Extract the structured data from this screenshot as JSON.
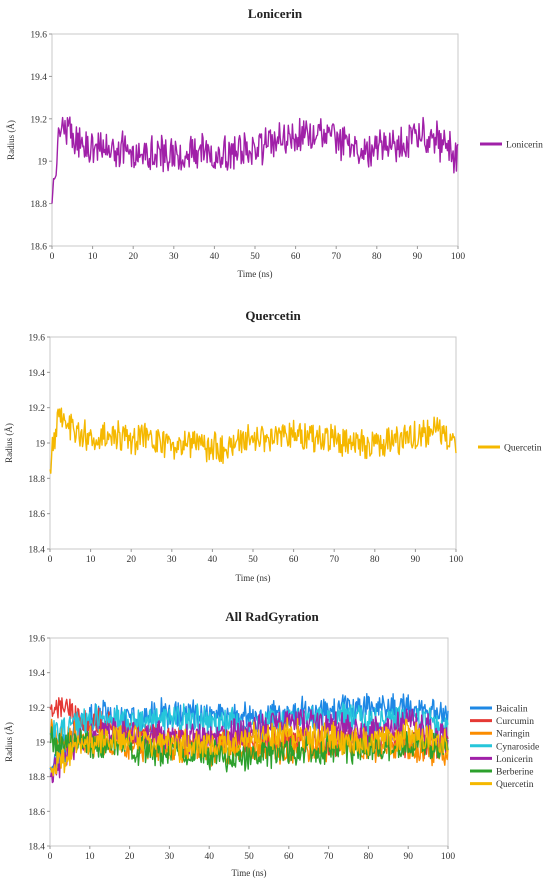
{
  "chart_data": [
    {
      "type": "line",
      "title": "Lonicerin",
      "xlabel": "Time (ns)",
      "ylabel": "Radius (Å)",
      "xlim": [
        0,
        100
      ],
      "ylim": [
        18.6,
        19.6
      ],
      "xticks": [
        "0",
        "10",
        "20",
        "30",
        "40",
        "50",
        "60",
        "70",
        "80",
        "90",
        "100"
      ],
      "yticks": [
        "18.6",
        "18.8",
        "19",
        "19.2",
        "19.4",
        "19.6"
      ],
      "legend": "right",
      "series": [
        {
          "name": "Lonicerin",
          "color": "#a020a8",
          "x": [
            0,
            2,
            5,
            8,
            10,
            15,
            20,
            25,
            30,
            35,
            40,
            45,
            50,
            55,
            60,
            65,
            70,
            75,
            80,
            85,
            90,
            95,
            100
          ],
          "y": [
            18.8,
            19.18,
            19.12,
            19.08,
            19.05,
            19.06,
            19.04,
            19.05,
            19.02,
            19.04,
            19.03,
            19.04,
            19.06,
            19.1,
            19.12,
            19.13,
            19.1,
            19.06,
            19.05,
            19.08,
            19.12,
            19.1,
            19.02
          ]
        }
      ]
    },
    {
      "type": "line",
      "title": "Quercetin",
      "xlabel": "Time (ns)",
      "ylabel": "Radius (Å)",
      "xlim": [
        0,
        100
      ],
      "ylim": [
        18.4,
        19.6
      ],
      "xticks": [
        "0",
        "10",
        "20",
        "30",
        "40",
        "50",
        "60",
        "70",
        "80",
        "90",
        "100"
      ],
      "yticks": [
        "18.4",
        "18.6",
        "18.8",
        "19",
        "19.2",
        "19.4",
        "19.6"
      ],
      "legend": "right",
      "series": [
        {
          "name": "Quercetin",
          "color": "#f5b800",
          "x": [
            0,
            2,
            5,
            8,
            10,
            15,
            20,
            25,
            30,
            35,
            40,
            45,
            50,
            55,
            60,
            65,
            70,
            75,
            80,
            85,
            90,
            95,
            100
          ],
          "y": [
            18.85,
            19.18,
            19.1,
            19.05,
            19.02,
            19.04,
            19.02,
            19.03,
            18.98,
            19.0,
            18.97,
            18.98,
            19.02,
            19.03,
            19.05,
            19.04,
            19.02,
            19.0,
            18.98,
            19.02,
            19.05,
            19.06,
            18.98
          ]
        }
      ]
    },
    {
      "type": "line",
      "title": "All RadGyration",
      "xlabel": "Time (ns)",
      "ylabel": "Radius (Å)",
      "xlim": [
        0,
        100
      ],
      "ylim": [
        18.4,
        19.6
      ],
      "xticks": [
        "0",
        "10",
        "20",
        "30",
        "40",
        "50",
        "60",
        "70",
        "80",
        "90",
        "100"
      ],
      "yticks": [
        "18.4",
        "18.6",
        "18.8",
        "19",
        "19.2",
        "19.4",
        "19.6"
      ],
      "legend": "right",
      "series": [
        {
          "name": "Baicalin",
          "color": "#1e88e5",
          "x": [
            0,
            10,
            20,
            30,
            40,
            50,
            60,
            70,
            80,
            90,
            100
          ],
          "y": [
            18.85,
            19.15,
            19.14,
            19.16,
            19.15,
            19.14,
            19.16,
            19.18,
            19.2,
            19.2,
            19.15
          ]
        },
        {
          "name": "Curcumin",
          "color": "#e53935",
          "x": [
            0,
            10,
            20,
            30,
            40,
            50,
            60,
            70,
            80,
            90,
            100
          ],
          "y": [
            19.2,
            19.12,
            19.05,
            19.02,
            19.0,
            19.0,
            19.02,
            19.0,
            19.02,
            19.0,
            19.0
          ]
        },
        {
          "name": "Naringin",
          "color": "#fb8c00",
          "x": [
            0,
            10,
            20,
            30,
            40,
            50,
            60,
            70,
            80,
            90,
            100
          ],
          "y": [
            19.05,
            19.0,
            18.98,
            18.97,
            18.96,
            18.96,
            18.97,
            18.98,
            18.97,
            18.96,
            18.95
          ]
        },
        {
          "name": "Cynaroside",
          "color": "#26c6da",
          "x": [
            0,
            10,
            20,
            30,
            40,
            50,
            60,
            70,
            80,
            90,
            100
          ],
          "y": [
            19.05,
            19.12,
            19.13,
            19.14,
            19.12,
            19.1,
            19.12,
            19.14,
            19.13,
            19.12,
            19.1
          ]
        },
        {
          "name": "Lonicerin",
          "color": "#a020a8",
          "x": [
            0,
            10,
            20,
            30,
            40,
            50,
            60,
            70,
            80,
            90,
            100
          ],
          "y": [
            18.8,
            19.06,
            19.04,
            19.02,
            19.03,
            19.06,
            19.12,
            19.1,
            19.05,
            19.12,
            19.02
          ]
        },
        {
          "name": "Berberine",
          "color": "#2ca02c",
          "x": [
            0,
            10,
            20,
            30,
            40,
            50,
            60,
            70,
            80,
            90,
            100
          ],
          "y": [
            19.0,
            18.98,
            18.96,
            18.95,
            18.93,
            18.92,
            18.95,
            18.96,
            18.97,
            18.98,
            18.97
          ]
        },
        {
          "name": "Quercetin",
          "color": "#f5b800",
          "x": [
            0,
            10,
            20,
            30,
            40,
            50,
            60,
            70,
            80,
            90,
            100
          ],
          "y": [
            18.85,
            19.02,
            19.02,
            18.98,
            18.97,
            19.02,
            19.05,
            19.02,
            18.98,
            19.05,
            18.98
          ]
        }
      ]
    }
  ]
}
